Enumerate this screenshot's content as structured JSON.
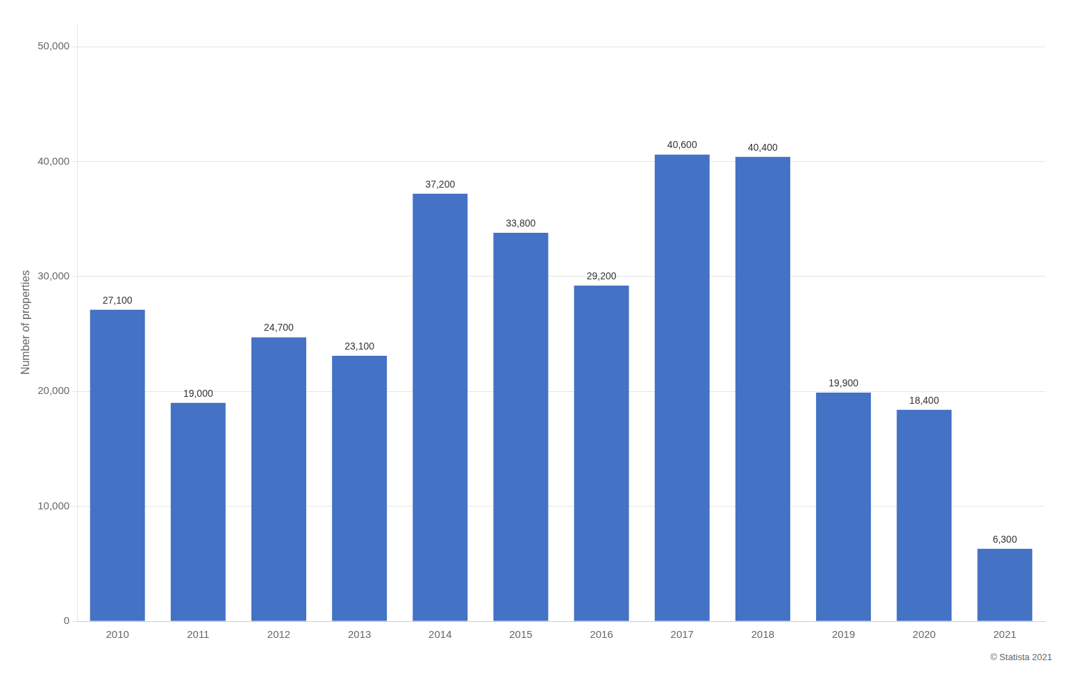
{
  "chart_data": {
    "type": "bar",
    "categories": [
      "2010",
      "2011",
      "2012",
      "2013",
      "2014",
      "2015",
      "2016",
      "2017",
      "2018",
      "2019",
      "2020",
      "2021"
    ],
    "values": [
      27100,
      19000,
      24700,
      23100,
      37200,
      33800,
      29200,
      40600,
      40400,
      19900,
      18400,
      6300
    ],
    "value_labels": [
      "27,100",
      "19,000",
      "24,700",
      "23,100",
      "37,200",
      "33,800",
      "29,200",
      "40,600",
      "40,400",
      "19,900",
      "18,400",
      "6,300"
    ],
    "data_labels": true,
    "color": "#4472c4",
    "ylabel": "Number of properties",
    "ylim": [
      0,
      52000
    ],
    "yticks": [
      0,
      {
        "value": 10000,
        "label": "10,000"
      },
      {
        "value": 20000,
        "label": "20,000"
      },
      {
        "value": 30000,
        "label": "30,000"
      },
      {
        "value": 40000,
        "label": "40,000"
      },
      {
        "value": 50000,
        "label": "50,000"
      }
    ],
    "grid": true,
    "annotations": [
      "© Statista 2021"
    ]
  }
}
